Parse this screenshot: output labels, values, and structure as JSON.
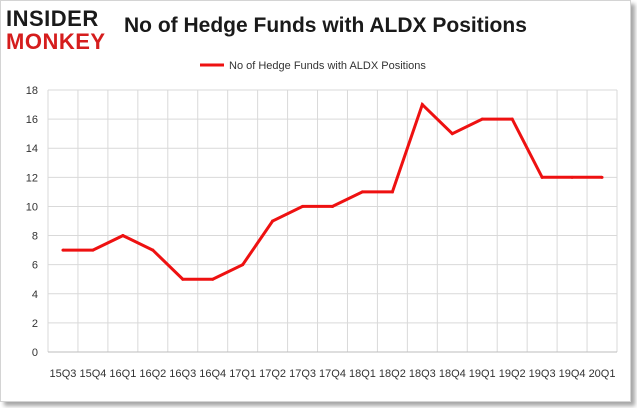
{
  "logo": {
    "line1": "INSIDER",
    "line2": "MONKEY"
  },
  "colors": {
    "series": "#ee1111",
    "grid": "#d9d9d9",
    "logo_red": "#d51d1d"
  },
  "chart_data": {
    "type": "line",
    "title": "No of Hedge Funds with ALDX Positions",
    "legend_position": "top",
    "grid": true,
    "ylim": [
      0,
      18
    ],
    "y_ticks": [
      0,
      2,
      4,
      6,
      8,
      10,
      12,
      14,
      16,
      18
    ],
    "categories": [
      "15Q3",
      "15Q4",
      "16Q1",
      "16Q2",
      "16Q3",
      "16Q4",
      "17Q1",
      "17Q2",
      "17Q3",
      "17Q4",
      "18Q1",
      "18Q2",
      "18Q3",
      "18Q4",
      "19Q1",
      "19Q2",
      "19Q3",
      "19Q4",
      "20Q1"
    ],
    "series": [
      {
        "name": "No of Hedge Funds with ALDX Positions",
        "values": [
          7,
          7,
          8,
          7,
          5,
          5,
          6,
          9,
          10,
          10,
          11,
          11,
          17,
          15,
          16,
          16,
          12,
          12,
          12
        ]
      }
    ]
  }
}
